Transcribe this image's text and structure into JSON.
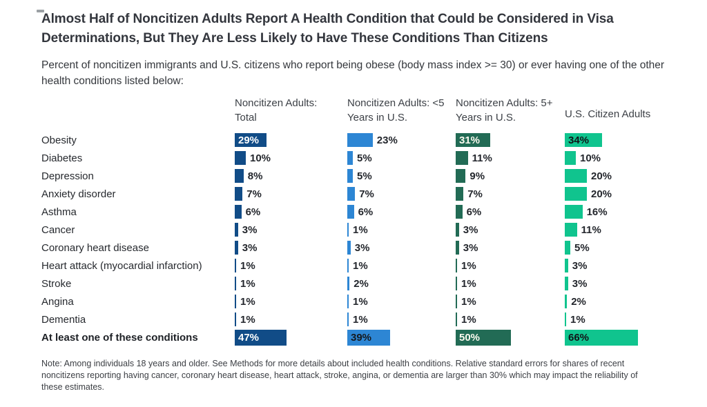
{
  "chart_data": {
    "type": "bar",
    "orientation": "horizontal",
    "value_unit": "%",
    "xlim": [
      0,
      100
    ],
    "grid": false,
    "legend_position": "column-headers",
    "title": "Almost Half of Noncitizen Adults Report A Health Condition that Could be Considered in Visa Determinations, But They Are Less Likely to Have These Conditions Than Citizens",
    "subtitle": "Percent of noncitizen immigrants and U.S. citizens who report being obese (body mass index >= 30) or ever having one of the other health conditions listed below:",
    "note": "Note: Among individuals 18 years and older. See Methods for more details about included health conditions. Relative standard errors for shares of recent noncitizens reporting having cancer, coronary heart disease, heart attack, stroke, angina, or dementia are larger than 30% which may impact the reliability of these estimates.",
    "categories": [
      {
        "label": "Obesity",
        "bold": false
      },
      {
        "label": "Diabetes",
        "bold": false
      },
      {
        "label": "Depression",
        "bold": false
      },
      {
        "label": "Anxiety disorder",
        "bold": false
      },
      {
        "label": "Asthma",
        "bold": false
      },
      {
        "label": "Cancer",
        "bold": false
      },
      {
        "label": "Coronary heart disease",
        "bold": false
      },
      {
        "label": "Heart attack (myocardial infarction)",
        "bold": false
      },
      {
        "label": "Stroke",
        "bold": false
      },
      {
        "label": "Angina",
        "bold": false
      },
      {
        "label": "Dementia",
        "bold": false
      },
      {
        "label": "At least one of these conditions",
        "bold": true
      }
    ],
    "series": [
      {
        "name": "Noncitizen Adults: Total",
        "color": "#114c87",
        "values": [
          29,
          10,
          8,
          7,
          6,
          3,
          3,
          1,
          1,
          1,
          1,
          47
        ],
        "labels": [
          "29%",
          "10%",
          "8%",
          "7%",
          "6%",
          "3%",
          "3%",
          "1%",
          "1%",
          "1%",
          "1%",
          "47%"
        ]
      },
      {
        "name": "Noncitizen Adults: <5 Years in U.S.",
        "color": "#2d86d4",
        "values": [
          23,
          5,
          5,
          7,
          6,
          1,
          3,
          1,
          2,
          1,
          1,
          39
        ],
        "labels": [
          "23%",
          "5%",
          "5%",
          "7%",
          "6%",
          "1%",
          "3%",
          "1%",
          "2%",
          "1%",
          "1%",
          "39%"
        ]
      },
      {
        "name": "Noncitizen Adults: 5+ Years in U.S.",
        "color": "#226b55",
        "values": [
          31,
          11,
          9,
          7,
          6,
          3,
          3,
          1,
          1,
          1,
          1,
          50
        ],
        "labels": [
          "31%",
          "11%",
          "9%",
          "7%",
          "6%",
          "3%",
          "3%",
          "1%",
          "1%",
          "1%",
          "1%",
          "50%"
        ]
      },
      {
        "name": "U.S. Citizen Adults",
        "color": "#10c48e",
        "values": [
          34,
          10,
          20,
          20,
          16,
          11,
          5,
          3,
          3,
          2,
          1,
          66
        ],
        "labels": [
          "34%",
          "10%",
          "20%",
          "20%",
          "16%",
          "11%",
          "5%",
          "3%",
          "3%",
          "2%",
          "1%",
          "66%"
        ]
      }
    ],
    "label_layout": {
      "inside": [
        {
          "row": 0,
          "series": [
            0,
            2,
            3
          ]
        },
        {
          "row": 11,
          "series": [
            0,
            1,
            2,
            3
          ]
        }
      ],
      "inside_text_colors": [
        "#ffffff",
        "#15191e",
        "#fdfbf0",
        "#101418"
      ]
    }
  }
}
